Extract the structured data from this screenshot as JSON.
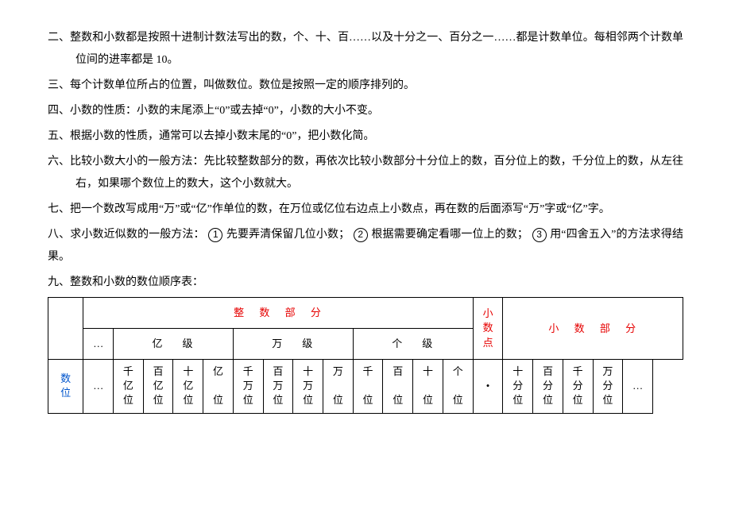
{
  "paragraphs": {
    "p2": "二、整数和小数都是按照十进制计数法写出的数，个、十、百……以及十分之一、百分之一……都是计数单位。每相邻两个计数单位间的进率都是 10。",
    "p3": "三、每个计数单位所占的位置，叫做数位。数位是按照一定的顺序排列的。",
    "p4": "四、小数的性质：小数的末尾添上“0”或去掉“0”，小数的大小不变。",
    "p5": "五、根据小数的性质，通常可以去掉小数末尾的“0”，把小数化简。",
    "p6": "六、比较小数大小的一般方法：先比较整数部分的数，再依次比较小数部分十分位上的数，百分位上的数，千分位上的数，从左往右，如果哪个数位上的数大，这个小数就大。",
    "p7": "七、把一个数改写成用“万”或“亿”作单位的数，在万位或亿位右边点上小数点，再在数的后面添写“万”字或“亿”字。",
    "p8a": "八、求小数近似数的一般方法：",
    "p8i1": "先要弄清保留几位小数；",
    "p8i2": "根据需要确定看哪一位上的数；",
    "p8i3": "用“四舍五入”的方法求得结果。",
    "p9": "九、整数和小数的数位顺序表："
  },
  "circled": {
    "c1": "1",
    "c2": "2",
    "c3": "3"
  },
  "table": {
    "header_int": "整 数 部 分",
    "header_point": "小数点",
    "header_dec": "小 数 部 分",
    "row_label": "数位",
    "ellipsis": "…",
    "level_yi": "亿　级",
    "level_wan": "万　级",
    "level_ge": "个　级",
    "dot": "•",
    "int_cells": [
      "千亿位",
      "百亿位",
      "十亿位",
      "亿位",
      "千万位",
      "百万位",
      "十万位",
      "万位",
      "千位",
      "百位",
      "十位",
      "个位"
    ],
    "dec_cells": [
      "十分位",
      "百分位",
      "千分位",
      "万分位"
    ]
  },
  "colors": {
    "red": "#e60000",
    "blue": "#0055cc",
    "text": "#000000",
    "background": "#ffffff"
  }
}
